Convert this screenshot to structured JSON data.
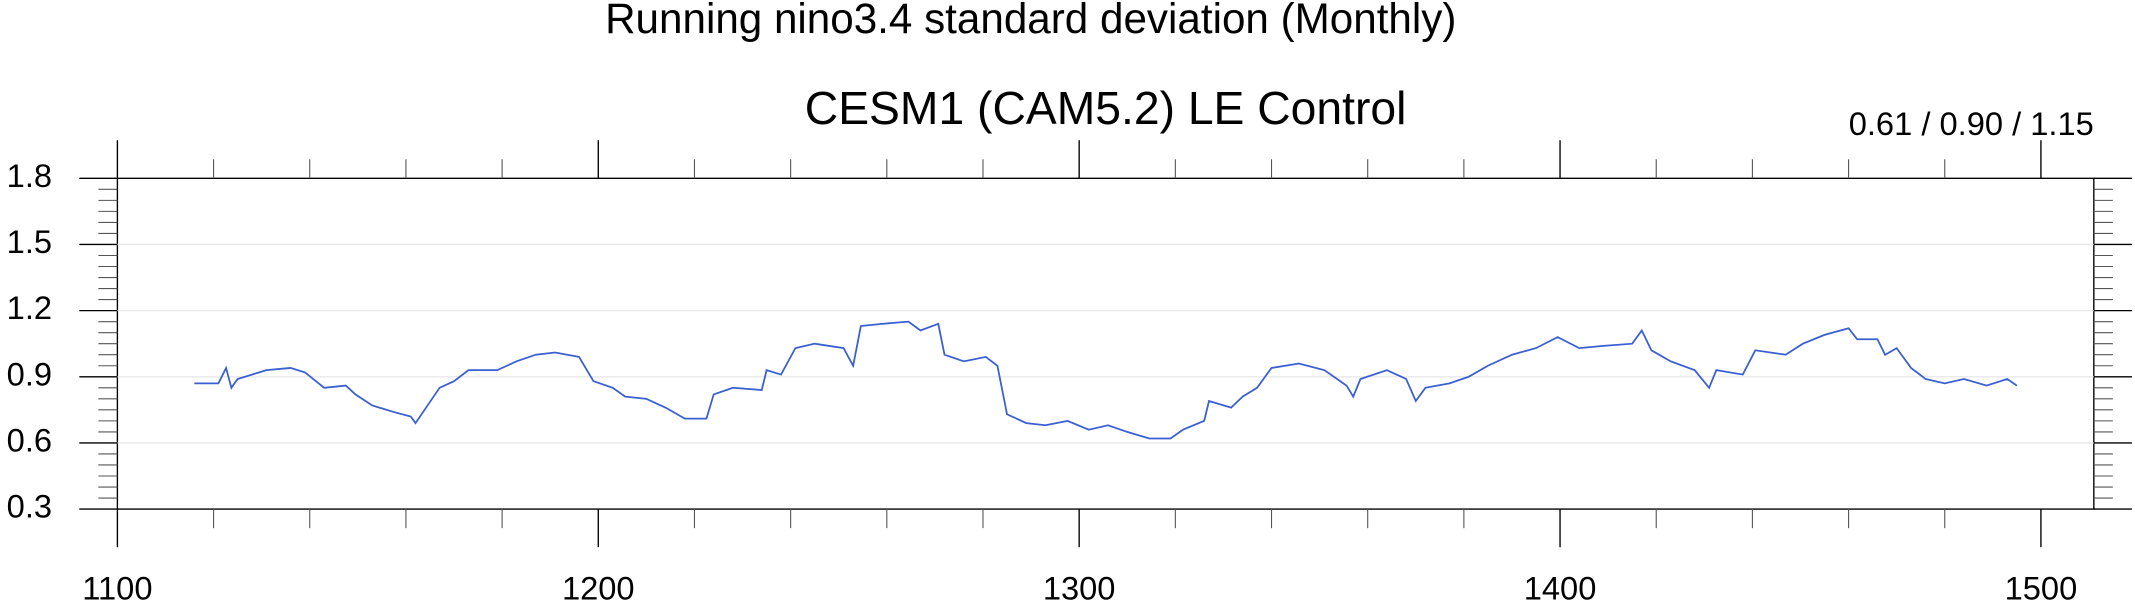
{
  "chart_data": {
    "type": "line",
    "title": "Running nino3.4 standard deviation (Monthly)",
    "subtitle": "CESM1 (CAM5.2) LE Control",
    "annotation": "0.61 / 0.90 / 1.15",
    "xlim": [
      1100,
      1511
    ],
    "xticks": [
      1100,
      1200,
      1300,
      1400,
      1500
    ],
    "ylim": [
      0.3,
      1.8
    ],
    "yticks": [
      0.3,
      0.6,
      0.9,
      1.2,
      1.5,
      1.8
    ],
    "grid": true,
    "series": [
      {
        "name": "Running nino3.4 standard deviation",
        "color": "#3a5fd0",
        "x": [
          1116,
          1121,
          1122.6,
          1123.7,
          1125,
          1131,
          1136,
          1139,
          1143,
          1147.5,
          1149.5,
          1153,
          1157.5,
          1161,
          1162,
          1164.5,
          1167,
          1170,
          1173,
          1179,
          1183,
          1187,
          1191,
          1196,
          1199,
          1203,
          1205.6,
          1210,
          1214,
          1218,
          1222.5,
          1224,
          1228,
          1234,
          1235,
          1238,
          1241,
          1245,
          1251,
          1253,
          1254.6,
          1259,
          1264.5,
          1267,
          1270.7,
          1272,
          1276,
          1280.6,
          1283,
          1285,
          1289,
          1293,
          1297.6,
          1302,
          1306,
          1310,
          1314.6,
          1319,
          1321.6,
          1326,
          1327,
          1331.6,
          1334,
          1337,
          1340,
          1345.7,
          1351,
          1355.6,
          1357,
          1358.5,
          1364,
          1368,
          1370,
          1372,
          1377,
          1381,
          1385,
          1390,
          1395,
          1399.5,
          1404,
          1409,
          1415,
          1417,
          1419,
          1423,
          1428,
          1431,
          1432.5,
          1438,
          1440.6,
          1446.9,
          1450.5,
          1455,
          1460,
          1461.8,
          1466,
          1467.6,
          1470,
          1473,
          1476,
          1480,
          1484,
          1488.7,
          1493,
          1495
        ],
        "values": [
          0.87,
          0.87,
          0.94,
          0.85,
          0.89,
          0.93,
          0.94,
          0.92,
          0.85,
          0.86,
          0.82,
          0.77,
          0.74,
          0.72,
          0.69,
          0.77,
          0.85,
          0.88,
          0.93,
          0.93,
          0.97,
          1.0,
          1.01,
          0.99,
          0.88,
          0.85,
          0.81,
          0.8,
          0.76,
          0.71,
          0.71,
          0.82,
          0.85,
          0.84,
          0.93,
          0.91,
          1.03,
          1.05,
          1.03,
          0.95,
          1.13,
          1.14,
          1.15,
          1.11,
          1.14,
          1.0,
          0.97,
          0.99,
          0.95,
          0.73,
          0.69,
          0.68,
          0.7,
          0.66,
          0.68,
          0.65,
          0.62,
          0.62,
          0.66,
          0.7,
          0.79,
          0.76,
          0.81,
          0.85,
          0.94,
          0.96,
          0.93,
          0.86,
          0.81,
          0.89,
          0.93,
          0.89,
          0.79,
          0.85,
          0.87,
          0.9,
          0.95,
          1.0,
          1.03,
          1.08,
          1.03,
          1.04,
          1.05,
          1.11,
          1.02,
          0.97,
          0.93,
          0.85,
          0.93,
          0.91,
          1.02,
          1.0,
          1.05,
          1.09,
          1.12,
          1.07,
          1.07,
          1.0,
          1.03,
          0.94,
          0.89,
          0.87,
          0.89,
          0.86,
          0.89,
          0.86
        ]
      }
    ]
  }
}
